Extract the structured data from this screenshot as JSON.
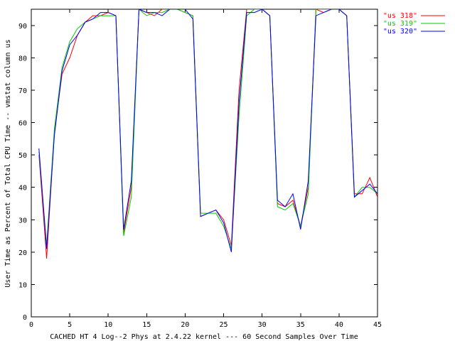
{
  "chart_data": {
    "type": "line",
    "xlabel": "CACHED HT 4 Log--2 Phys at 2.4.22 kernel --- 60 Second Samples Over Time",
    "ylabel": "User Time as Percent of Total CPU Time -- vmstat column us",
    "xlim": [
      0,
      45
    ],
    "ylim": [
      0,
      95
    ],
    "xticks": [
      0,
      5,
      10,
      15,
      20,
      25,
      30,
      35,
      40,
      45
    ],
    "yticks": [
      0,
      10,
      20,
      30,
      40,
      50,
      60,
      70,
      80,
      90
    ],
    "legend_position": "top-right",
    "x": [
      1,
      2,
      3,
      4,
      5,
      6,
      7,
      8,
      9,
      10,
      11,
      12,
      13,
      14,
      15,
      16,
      17,
      18,
      19,
      20,
      21,
      22,
      23,
      24,
      25,
      26,
      27,
      28,
      29,
      30,
      31,
      32,
      33,
      34,
      35,
      36,
      37,
      38,
      39,
      40,
      41,
      42,
      43,
      44,
      45
    ],
    "series": [
      {
        "name": "\"us 318\"",
        "color": "#ff0000",
        "values": [
          50,
          18,
          57,
          75,
          80,
          87,
          91,
          93,
          93,
          94,
          93,
          26,
          40,
          95,
          94,
          93,
          95,
          95,
          95,
          94,
          93,
          31,
          32,
          33,
          30,
          22,
          70,
          95,
          95,
          95,
          93,
          35,
          34,
          36,
          28,
          40,
          95,
          94,
          95,
          95,
          93,
          38,
          38,
          43,
          37
        ]
      },
      {
        "name": "\"us 319\"",
        "color": "#00cc00",
        "values": [
          51,
          22,
          58,
          77,
          85,
          89,
          91,
          92,
          93,
          93,
          93,
          25,
          37,
          95,
          93,
          94,
          94,
          95,
          95,
          94,
          93,
          32,
          32,
          32,
          28,
          21,
          62,
          93,
          95,
          95,
          93,
          34,
          33,
          35,
          28,
          38,
          95,
          95,
          95,
          95,
          93,
          37,
          40,
          40,
          38
        ]
      },
      {
        "name": "\"us 320\"",
        "color": "#0000ff",
        "values": [
          52,
          21,
          56,
          76,
          84,
          87,
          91,
          92,
          94,
          94,
          93,
          27,
          42,
          95,
          94,
          94,
          93,
          95,
          95,
          95,
          92,
          31,
          32,
          33,
          29,
          20,
          66,
          94,
          94,
          95,
          93,
          36,
          34,
          38,
          27,
          42,
          93,
          94,
          95,
          95,
          93,
          37,
          39,
          41,
          38
        ]
      }
    ]
  }
}
